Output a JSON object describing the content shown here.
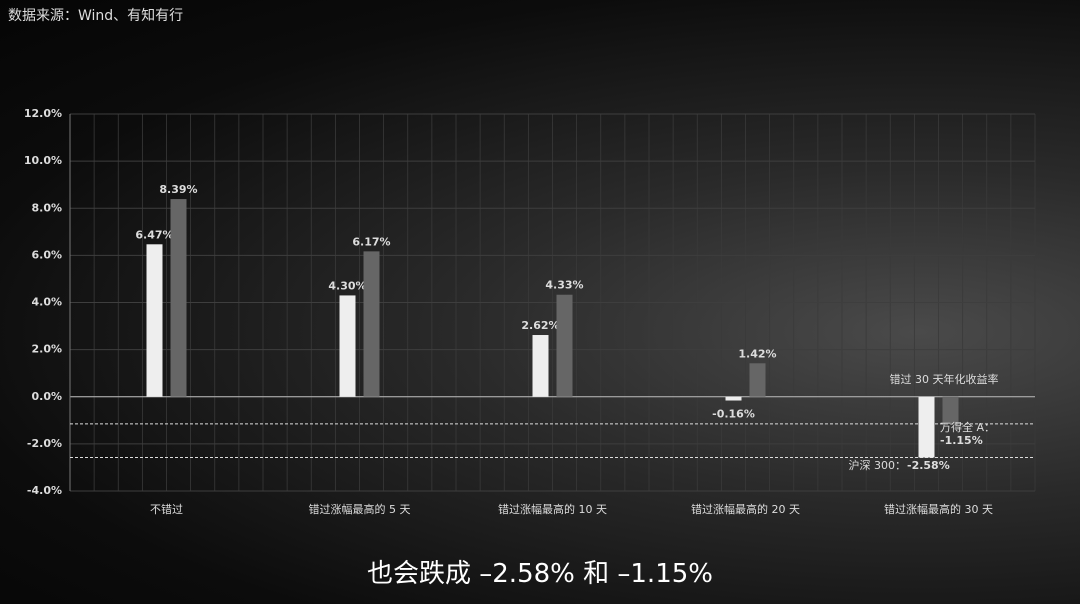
{
  "source": "数据来源：Wind、有知有行",
  "caption": "也会跌成 –2.58% 和 –1.15%",
  "chart_data": {
    "type": "bar",
    "categories": [
      "不错过",
      "错过涨幅最高的 5 天",
      "错过涨幅最高的 10 天",
      "错过涨幅最高的 20 天",
      "错过涨幅最高的 30 天"
    ],
    "series": [
      {
        "color": "#eeeeee",
        "values": [
          6.47,
          4.3,
          2.62,
          -0.16,
          -2.58
        ],
        "value_labels": [
          "6.47%",
          "4.30%",
          "2.62%",
          "-0.16%",
          "-2.58%"
        ]
      },
      {
        "color": "#666666",
        "values": [
          8.39,
          6.17,
          4.33,
          1.42,
          -1.15
        ],
        "value_labels": [
          "8.39%",
          "6.17%",
          "4.33%",
          "1.42%",
          "-1.15%"
        ]
      }
    ],
    "ylim": [
      -4,
      12
    ],
    "yticks": [
      {
        "value": -4,
        "label": "-4.0%"
      },
      {
        "value": -2,
        "label": "-2.0%"
      },
      {
        "value": 0,
        "label": "0.0%"
      },
      {
        "value": 2,
        "label": "2.0%"
      },
      {
        "value": 4,
        "label": "4.0%"
      },
      {
        "value": 6,
        "label": "6.0%"
      },
      {
        "value": 8,
        "label": "8.0%"
      },
      {
        "value": 10,
        "label": "10.0%"
      },
      {
        "value": 12,
        "label": "12.0%"
      }
    ],
    "grid": true,
    "annotations": [
      "错过 30 天年化收益率",
      "沪深 300：",
      "万得全 A："
    ]
  }
}
